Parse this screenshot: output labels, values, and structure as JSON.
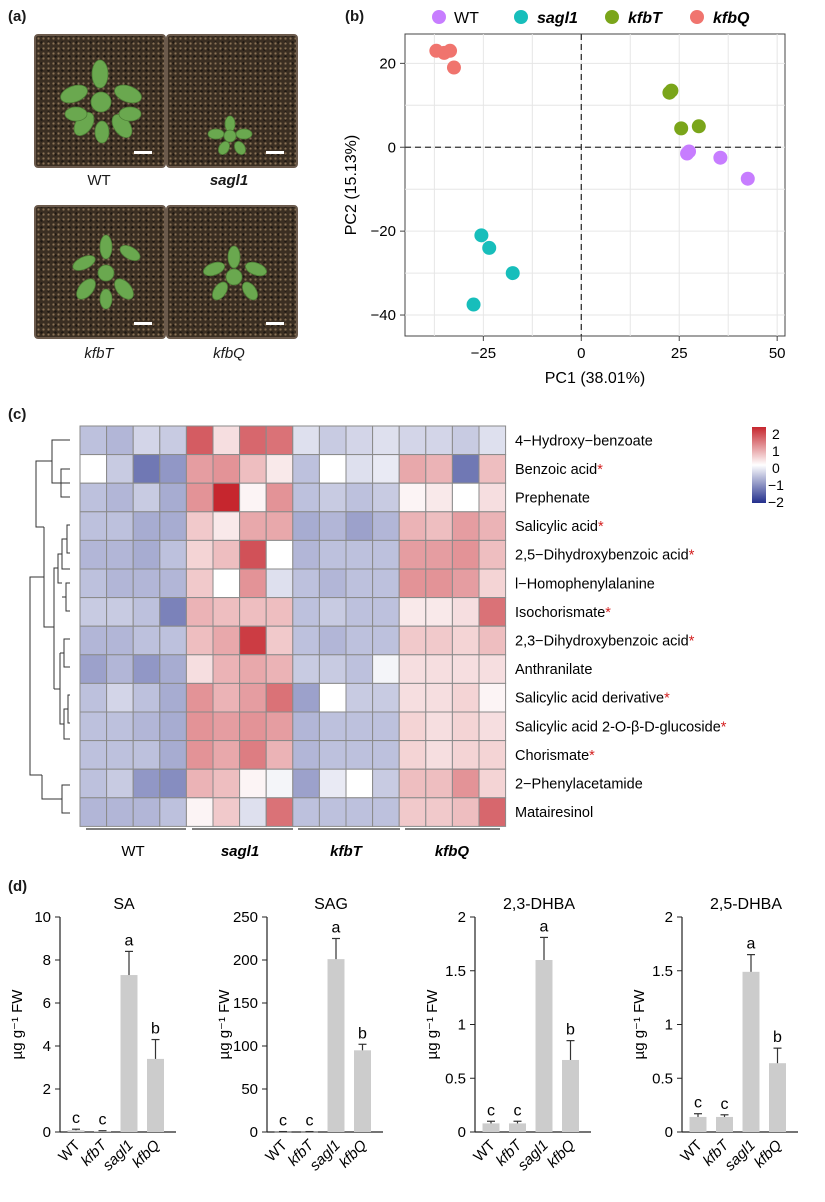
{
  "panel_a": {
    "label": "(a)",
    "captions": [
      "WT",
      "sagl1",
      "kfbT",
      "kfbQ"
    ]
  },
  "panel_b": {
    "label": "(b)",
    "legend": [
      {
        "name": "WT",
        "color": "#c77dff"
      },
      {
        "name": "sagl1",
        "color": "#17bebb"
      },
      {
        "name": "kfbT",
        "color": "#7aa51a"
      },
      {
        "name": "kfbQ",
        "color": "#f0746e"
      }
    ]
  },
  "panel_c": {
    "label": "(c)",
    "legend_ticks": [
      "2",
      "1",
      "0",
      "−1",
      "−2"
    ],
    "group_labels": [
      "WT",
      "sagl1",
      "kfbT",
      "kfbQ"
    ]
  },
  "panel_d": {
    "label": "(d)"
  },
  "colors": {
    "heat_low": "#232f8c",
    "heat_mid": "#ffffff",
    "heat_high": "#c6262e",
    "bar": "#cccccc",
    "asterisk": "#d42020"
  },
  "chart_data": [
    {
      "type": "scatter",
      "title": "",
      "xlabel": "PC1 (38.01%)",
      "ylabel": "PC2 (15.13%)",
      "xlim": [
        -45,
        52
      ],
      "ylim": [
        -45,
        27
      ],
      "xticks": [
        -25,
        0,
        25,
        50
      ],
      "yticks": [
        20,
        0,
        -20,
        -40
      ],
      "grid": true,
      "series": [
        {
          "name": "WT",
          "x": [
            27.5,
            27,
            35.5,
            42.5
          ],
          "y": [
            -1,
            -1.5,
            -2.5,
            -7.5
          ]
        },
        {
          "name": "sagl1",
          "x": [
            -25.5,
            -23.5,
            -17.5,
            -27.5
          ],
          "y": [
            -21,
            -24,
            -30,
            -37.5
          ]
        },
        {
          "name": "kfbT",
          "x": [
            23,
            22.5,
            25.5,
            30
          ],
          "y": [
            13.5,
            13,
            4.5,
            5
          ]
        },
        {
          "name": "kfbQ",
          "x": [
            -37,
            -35,
            -33.5,
            -32.5
          ],
          "y": [
            23,
            22.5,
            23,
            19
          ]
        }
      ]
    },
    {
      "type": "heatmap",
      "rows": [
        "4−Hydroxy−benzoate",
        "Benzoic acid",
        "Prephenate",
        "Salicylic acid",
        "2,5−Dihydroxybenzoic acid",
        "l−Homophenylalanine",
        "Isochorismate",
        "2,3−Dihydroxybenzoic acid",
        "Anthranilate",
        "Salicylic acid derivative",
        "Salicylic acid 2-O-β-D-glucoside",
        "Chorismate",
        "2−Phenylacetamide",
        "Matairesinol"
      ],
      "starred": [
        false,
        true,
        false,
        true,
        true,
        false,
        true,
        true,
        false,
        true,
        true,
        true,
        false,
        false
      ],
      "columns": [
        "WT",
        "WT",
        "WT",
        "WT",
        "sagl1",
        "sagl1",
        "sagl1",
        "sagl1",
        "kfbT",
        "kfbT",
        "kfbT",
        "kfbT",
        "kfbQ",
        "kfbQ",
        "kfbQ",
        "kfbQ"
      ],
      "value_range": [
        -2,
        2
      ],
      "values": [
        [
          -0.6,
          -0.7,
          -0.4,
          -0.5,
          1.5,
          0.3,
          1.4,
          1.3,
          -0.3,
          -0.5,
          -0.4,
          -0.3,
          -0.4,
          -0.4,
          -0.5,
          -0.3
        ],
        [
          0.0,
          -0.5,
          -1.3,
          -1.0,
          0.9,
          1.0,
          0.6,
          0.2,
          -0.6,
          0.0,
          -0.3,
          -0.2,
          0.8,
          0.7,
          -1.3,
          0.6
        ],
        [
          -0.6,
          -0.7,
          -0.5,
          -0.8,
          1.0,
          2.0,
          0.1,
          1.0,
          -0.6,
          -0.5,
          -0.6,
          -0.5,
          0.1,
          0.2,
          0.0,
          0.3
        ],
        [
          -0.6,
          -0.6,
          -0.8,
          -0.8,
          0.5,
          0.2,
          0.8,
          0.8,
          -0.8,
          -0.7,
          -0.9,
          -0.7,
          0.7,
          0.6,
          0.9,
          0.7
        ],
        [
          -0.7,
          -0.7,
          -0.8,
          -0.6,
          0.4,
          0.6,
          1.6,
          0.0,
          -0.7,
          -0.6,
          -0.6,
          -0.6,
          0.9,
          0.9,
          1.0,
          0.6
        ],
        [
          -0.6,
          -0.7,
          -0.7,
          -0.7,
          0.5,
          0.0,
          1.0,
          -0.3,
          -0.6,
          -0.7,
          -0.6,
          -0.6,
          1.0,
          1.0,
          0.9,
          0.4
        ],
        [
          -0.5,
          -0.5,
          -0.6,
          -1.2,
          0.7,
          0.6,
          0.6,
          0.6,
          -0.6,
          -0.5,
          -0.6,
          -0.6,
          0.2,
          0.2,
          0.3,
          1.3
        ],
        [
          -0.7,
          -0.7,
          -0.6,
          -0.6,
          0.6,
          0.8,
          1.8,
          0.5,
          -0.6,
          -0.7,
          -0.6,
          -0.6,
          0.5,
          0.5,
          0.4,
          0.6
        ],
        [
          -0.9,
          -0.7,
          -1.0,
          -0.8,
          0.3,
          0.7,
          0.8,
          0.7,
          -0.5,
          -0.5,
          -0.6,
          -0.1,
          0.3,
          0.3,
          0.3,
          0.3
        ],
        [
          -0.6,
          -0.4,
          -0.6,
          -0.8,
          1.0,
          0.7,
          0.9,
          1.3,
          -0.9,
          0.0,
          -0.5,
          -0.5,
          0.3,
          0.3,
          0.4,
          0.1
        ],
        [
          -0.6,
          -0.6,
          -0.7,
          -0.8,
          1.0,
          0.9,
          1.0,
          0.9,
          -0.7,
          -0.6,
          -0.6,
          -0.6,
          0.4,
          0.3,
          0.4,
          0.3
        ],
        [
          -0.6,
          -0.6,
          -0.6,
          -0.8,
          1.0,
          0.8,
          1.2,
          0.7,
          -0.7,
          -0.6,
          -0.6,
          -0.6,
          0.4,
          0.3,
          0.4,
          0.4
        ],
        [
          -0.6,
          -0.5,
          -1.0,
          -1.1,
          0.7,
          0.6,
          0.1,
          -0.1,
          -0.9,
          -0.2,
          0.0,
          -0.5,
          0.6,
          0.6,
          1.0,
          0.4
        ],
        [
          -0.7,
          -0.7,
          -0.7,
          -0.6,
          0.1,
          0.5,
          -0.3,
          1.3,
          -0.6,
          -0.6,
          -0.6,
          -0.6,
          0.5,
          0.5,
          0.6,
          1.4
        ]
      ]
    },
    {
      "type": "bar",
      "title": "SA",
      "ylabel": "µg g⁻¹ FW",
      "categories": [
        "WT",
        "kfbT",
        "sagl1",
        "kfbQ"
      ],
      "values": [
        0.08,
        0.04,
        7.3,
        3.4
      ],
      "errors": [
        0.05,
        0.02,
        1.1,
        0.9
      ],
      "letters": [
        "c",
        "c",
        "a",
        "b"
      ],
      "ylim": [
        0,
        10
      ],
      "yticks": [
        0,
        2,
        4,
        6,
        8,
        10
      ],
      "yticklabels": [
        "0",
        "2",
        "4",
        "6",
        "8",
        "10"
      ]
    },
    {
      "type": "bar",
      "title": "SAG",
      "ylabel": "µg g⁻¹ FW",
      "categories": [
        "WT",
        "kfbT",
        "sagl1",
        "kfbQ"
      ],
      "values": [
        0.3,
        0.3,
        201,
        95
      ],
      "errors": [
        0.2,
        0.2,
        24,
        7
      ],
      "letters": [
        "c",
        "c",
        "a",
        "b"
      ],
      "ylim": [
        0,
        250
      ],
      "yticks": [
        0,
        50,
        100,
        150,
        200,
        250
      ],
      "yticklabels": [
        "0",
        "50",
        "100",
        "150",
        "200",
        "250"
      ]
    },
    {
      "type": "bar",
      "title": "2,3-DHBA",
      "ylabel": "µg g⁻¹ FW",
      "categories": [
        "WT",
        "kfbT",
        "sagl1",
        "kfbQ"
      ],
      "values": [
        0.08,
        0.08,
        1.6,
        0.67
      ],
      "errors": [
        0.02,
        0.02,
        0.21,
        0.18
      ],
      "letters": [
        "c",
        "c",
        "a",
        "b"
      ],
      "ylim": [
        0,
        2
      ],
      "yticks": [
        0,
        0.5,
        1,
        1.5,
        2
      ],
      "yticklabels": [
        "0",
        "0.5",
        "1",
        "1.5",
        "2"
      ]
    },
    {
      "type": "bar",
      "title": "2,5-DHBA",
      "ylabel": "µg g⁻¹ FW",
      "categories": [
        "WT",
        "kfbT",
        "sagl1",
        "kfbQ"
      ],
      "values": [
        0.14,
        0.14,
        1.49,
        0.64
      ],
      "errors": [
        0.03,
        0.02,
        0.16,
        0.14
      ],
      "letters": [
        "c",
        "c",
        "a",
        "b"
      ],
      "ylim": [
        0,
        2
      ],
      "yticks": [
        0,
        0.5,
        1,
        1.5,
        2
      ],
      "yticklabels": [
        "0",
        "0.5",
        "1",
        "1.5",
        "2"
      ]
    }
  ]
}
